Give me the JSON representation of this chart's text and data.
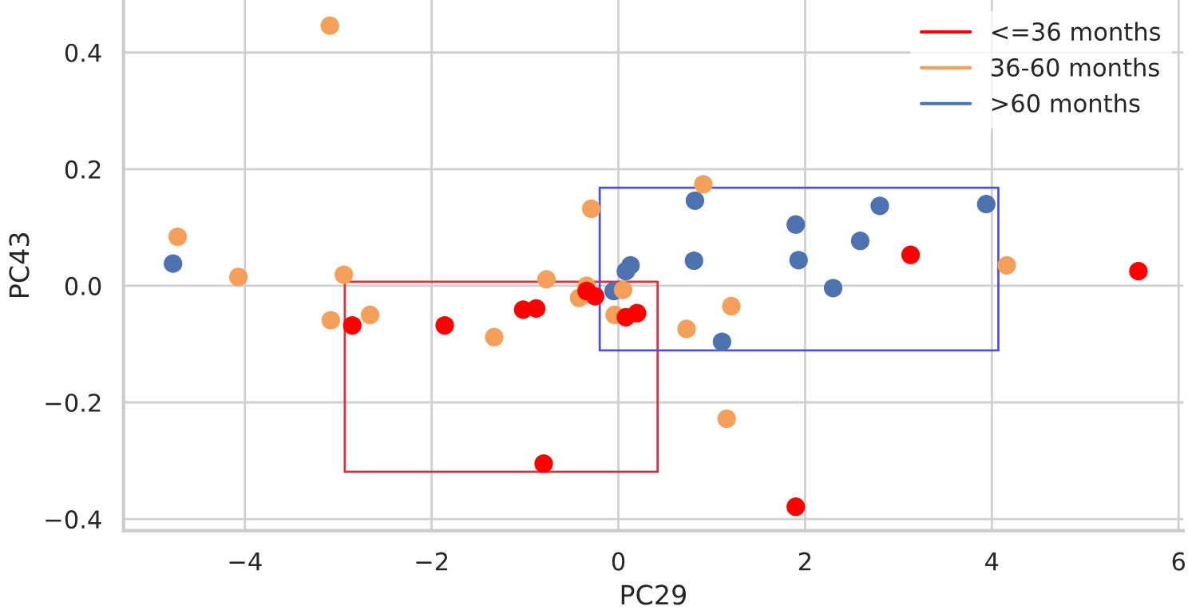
{
  "chart_data": {
    "type": "scatter",
    "xlabel": "PC29",
    "ylabel": "PC43",
    "xlim": [
      -5.3,
      6.05
    ],
    "ylim": [
      -0.42,
      0.49
    ],
    "xticks": [
      {
        "value": -4,
        "label": "−4"
      },
      {
        "value": -2,
        "label": "−2"
      },
      0,
      2,
      4,
      6
    ],
    "yticks": [
      {
        "value": -0.4,
        "label": "−0.4"
      },
      {
        "value": -0.2,
        "label": "−0.2"
      },
      {
        "value": 0,
        "label": "0.0"
      },
      0.2,
      0.4
    ],
    "grid": true,
    "legend": "top right",
    "marker": "circle",
    "series": [
      {
        "name": "<=36 months",
        "color": "#ff0000",
        "x": [
          -0.34,
          -0.25,
          -1.02,
          -0.88,
          -2.85,
          -1.86,
          -0.8,
          3.13,
          5.57,
          0.08,
          0.2,
          1.9
        ],
        "values": [
          -0.009,
          -0.018,
          -0.041,
          -0.039,
          -0.068,
          -0.068,
          -0.305,
          0.053,
          0.025,
          -0.054,
          -0.047,
          -0.379
        ]
      },
      {
        "name": "36-60 months",
        "color": "#f4a05a",
        "x": [
          -3.09,
          -4.72,
          -4.07,
          -2.94,
          -0.29,
          -0.77,
          -0.42,
          -0.34,
          -3.08,
          -2.66,
          -1.33,
          0.91,
          0.05,
          4.16,
          1.21,
          -0.04,
          0.73,
          1.16
        ],
        "values": [
          0.446,
          0.084,
          0.015,
          0.019,
          0.132,
          0.011,
          -0.021,
          0.0,
          -0.059,
          -0.05,
          -0.088,
          0.174,
          -0.007,
          0.035,
          -0.035,
          -0.05,
          -0.074,
          -0.228
        ]
      },
      {
        "name": ">60 months",
        "color": "#4c72b0",
        "x": [
          -4.77,
          0.82,
          0.81,
          0.13,
          0.08,
          -0.05,
          1.9,
          1.93,
          2.59,
          2.8,
          3.94,
          2.3,
          1.11
        ],
        "values": [
          0.038,
          0.146,
          0.043,
          0.035,
          0.025,
          -0.009,
          0.105,
          0.044,
          0.077,
          0.137,
          0.14,
          -0.004,
          -0.096
        ]
      },
      {
        "type": "line",
        "color": "#e03040",
        "line_style": "solid",
        "marker": "none",
        "x": [
          -2.93,
          0.42,
          0.42
        ],
        "values": [
          0.007,
          0.007,
          -0.319
        ]
      },
      {
        "type": "line",
        "color": "#e03040",
        "line_style": "solid",
        "marker": "none",
        "x": [
          0.42,
          -2.93,
          -2.93
        ],
        "values": [
          -0.319,
          -0.319,
          0.007
        ]
      },
      {
        "type": "line",
        "color": "#5050e0",
        "line_style": "solid",
        "marker": "none",
        "x": [
          -0.2,
          4.07,
          4.07
        ],
        "values": [
          0.168,
          0.168,
          -0.111
        ]
      },
      {
        "type": "line",
        "color": "#5050e0",
        "line_style": "solid",
        "marker": "none",
        "x": [
          4.07,
          -0.2,
          -0.2
        ],
        "values": [
          -0.111,
          -0.111,
          0.168
        ]
      }
    ]
  }
}
